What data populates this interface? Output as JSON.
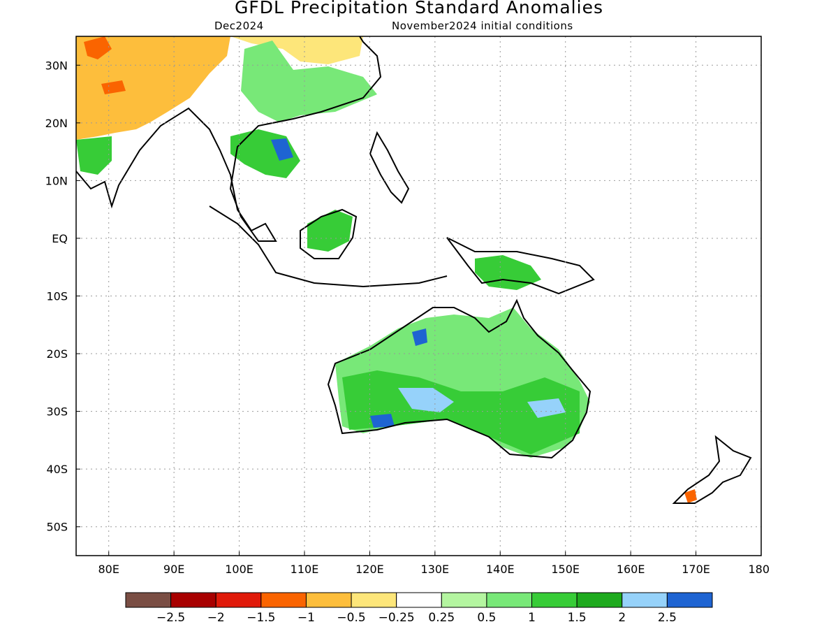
{
  "title": "GFDL Precipitation Standard Anomalies",
  "subtitle_left": "Dec2024",
  "subtitle_right": "November2024 initial conditions",
  "y_axis": {
    "labels": [
      "30N",
      "20N",
      "10N",
      "EQ",
      "10S",
      "20S",
      "30S",
      "40S",
      "50S"
    ],
    "values": [
      30,
      20,
      10,
      0,
      -10,
      -20,
      -30,
      -40,
      -50
    ],
    "range": [
      -55,
      35
    ]
  },
  "x_axis": {
    "labels": [
      "80E",
      "90E",
      "100E",
      "110E",
      "120E",
      "130E",
      "140E",
      "150E",
      "160E",
      "170E",
      "180"
    ],
    "values": [
      80,
      90,
      100,
      110,
      120,
      130,
      140,
      150,
      160,
      170,
      180
    ],
    "range": [
      75,
      180
    ]
  },
  "grid": "dotted",
  "colorbar": {
    "colors": [
      "#7a4e44",
      "#a80000",
      "#e01a0a",
      "#fa6400",
      "#fdbe3c",
      "#fde67a",
      "#ffffff",
      "#b4f5a0",
      "#78e878",
      "#37cc37",
      "#1eaa1e",
      "#96d2fa",
      "#1e64d2"
    ],
    "labels": [
      "−2.5",
      "−2",
      "−1.5",
      "−1",
      "−0.5",
      "−0.25",
      "0.25",
      "0.5",
      "1",
      "1.5",
      "2",
      "2.5"
    ]
  }
}
